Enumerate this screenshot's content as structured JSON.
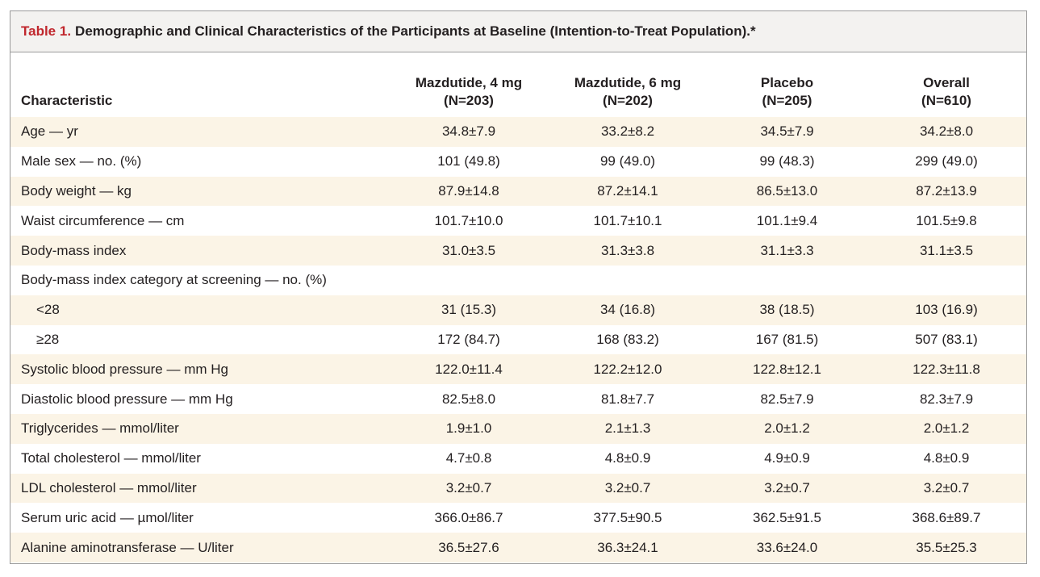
{
  "title": {
    "label": "Table 1.",
    "text": "Demographic and Clinical Characteristics of the Participants at Baseline (Intention-to-Treat Population).*"
  },
  "columns": {
    "characteristic": "Characteristic",
    "groups": [
      {
        "name": "Mazdutide, 4 mg",
        "n": "(N=203)"
      },
      {
        "name": "Mazdutide, 6 mg",
        "n": "(N=202)"
      },
      {
        "name": "Placebo",
        "n": "(N=205)"
      },
      {
        "name": "Overall",
        "n": "(N=610)"
      }
    ]
  },
  "rows": [
    {
      "label": "Age — yr",
      "indent": false,
      "values": [
        "34.8±7.9",
        "33.2±8.2",
        "34.5±7.9",
        "34.2±8.0"
      ]
    },
    {
      "label": "Male sex — no. (%)",
      "indent": false,
      "values": [
        "101 (49.8)",
        "99 (49.0)",
        "99 (48.3)",
        "299 (49.0)"
      ]
    },
    {
      "label": "Body weight — kg",
      "indent": false,
      "values": [
        "87.9±14.8",
        "87.2±14.1",
        "86.5±13.0",
        "87.2±13.9"
      ]
    },
    {
      "label": "Waist circumference — cm",
      "indent": false,
      "values": [
        "101.7±10.0",
        "101.7±10.1",
        "101.1±9.4",
        "101.5±9.8"
      ]
    },
    {
      "label": "Body-mass index",
      "indent": false,
      "values": [
        "31.0±3.5",
        "31.3±3.8",
        "31.1±3.3",
        "31.1±3.5"
      ]
    },
    {
      "label": "Body-mass index category at screening — no. (%)",
      "indent": false,
      "values": [
        "",
        "",
        "",
        ""
      ]
    },
    {
      "label": "<28",
      "indent": true,
      "values": [
        "31 (15.3)",
        "34 (16.8)",
        "38 (18.5)",
        "103 (16.9)"
      ]
    },
    {
      "label": "≥28",
      "indent": true,
      "values": [
        "172 (84.7)",
        "168 (83.2)",
        "167 (81.5)",
        "507 (83.1)"
      ]
    },
    {
      "label": "Systolic blood pressure — mm Hg",
      "indent": false,
      "values": [
        "122.0±11.4",
        "122.2±12.0",
        "122.8±12.1",
        "122.3±11.8"
      ]
    },
    {
      "label": "Diastolic blood pressure — mm Hg",
      "indent": false,
      "values": [
        "82.5±8.0",
        "81.8±7.7",
        "82.5±7.9",
        "82.3±7.9"
      ]
    },
    {
      "label": "Triglycerides — mmol/liter",
      "indent": false,
      "values": [
        "1.9±1.0",
        "2.1±1.3",
        "2.0±1.2",
        "2.0±1.2"
      ]
    },
    {
      "label": "Total cholesterol — mmol/liter",
      "indent": false,
      "values": [
        "4.7±0.8",
        "4.8±0.9",
        "4.9±0.9",
        "4.8±0.9"
      ]
    },
    {
      "label": "LDL cholesterol — mmol/liter",
      "indent": false,
      "values": [
        "3.2±0.7",
        "3.2±0.7",
        "3.2±0.7",
        "3.2±0.7"
      ]
    },
    {
      "label": "Serum uric acid — µmol/liter",
      "indent": false,
      "values": [
        "366.0±86.7",
        "377.5±90.5",
        "362.5±91.5",
        "368.6±89.7"
      ]
    },
    {
      "label": "Alanine aminotransferase — U/liter",
      "indent": false,
      "values": [
        "36.5±27.6",
        "36.3±24.1",
        "33.6±24.0",
        "35.5±25.3"
      ]
    }
  ],
  "colors": {
    "title_label": "#c0272d",
    "title_bg": "#f3f2f0",
    "row_shade": "#fbf4e6",
    "border": "#9a9a9a"
  }
}
